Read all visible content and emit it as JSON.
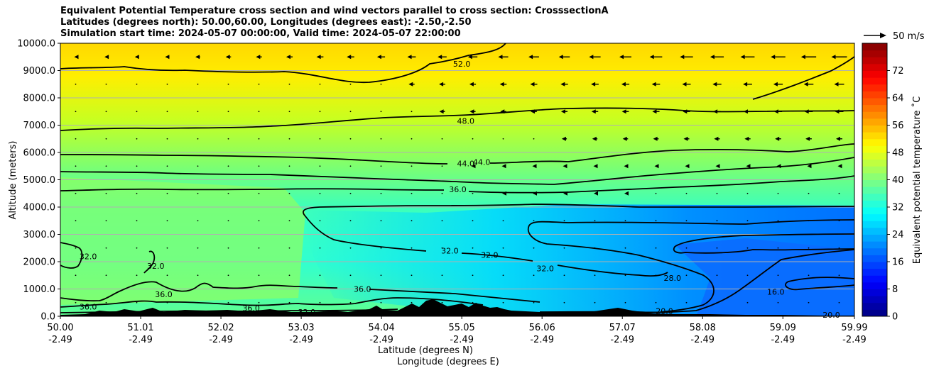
{
  "chart_data": {
    "type": "contour",
    "title": [
      "Equivalent Potential Temperature cross section and wind vectors parallel to cross section: CrosssectionA",
      "Latitudes (degrees north): 50.00,60.00, Longitudes (degrees east): -2.50,-2.50",
      "Simulation start time: 2024-05-07 00:00:00, Valid time: 2024-05-07 22:00:00"
    ],
    "ylabel": "Altitude (meters)",
    "xlabel_lat": "Latitude (degrees N)",
    "xlabel_lon": "Longitude (degrees E)",
    "ylim": [
      0,
      10000
    ],
    "y_ticks": [
      "0.0",
      "1000.0",
      "2000.0",
      "3000.0",
      "4000.0",
      "5000.0",
      "6000.0",
      "7000.0",
      "8000.0",
      "9000.0",
      "10000.0"
    ],
    "x_ticks": [
      {
        "lat": "50.00",
        "lon": "-2.49"
      },
      {
        "lat": "51.01",
        "lon": "-2.49"
      },
      {
        "lat": "52.02",
        "lon": "-2.49"
      },
      {
        "lat": "53.03",
        "lon": "-2.49"
      },
      {
        "lat": "54.04",
        "lon": "-2.49"
      },
      {
        "lat": "55.05",
        "lon": "-2.49"
      },
      {
        "lat": "56.06",
        "lon": "-2.49"
      },
      {
        "lat": "57.07",
        "lon": "-2.49"
      },
      {
        "lat": "58.08",
        "lon": "-2.49"
      },
      {
        "lat": "59.09",
        "lon": "-2.49"
      },
      {
        "lat": "59.99",
        "lon": "-2.49"
      }
    ],
    "xlim": [
      50.0,
      59.99
    ],
    "grid": "horizontal",
    "colorbar": {
      "label": "Equivalent potential temperature ˚C",
      "range": [
        0,
        80
      ],
      "ticks": [
        "0",
        "8",
        "16",
        "24",
        "32",
        "40",
        "48",
        "56",
        "64",
        "72"
      ],
      "colormap": "jet"
    },
    "quiver_key": {
      "label": "50 m/s",
      "value": 50
    },
    "contour_labels": [
      {
        "text": "52.0",
        "x": 55.05,
        "y": 9250
      },
      {
        "text": "48.0",
        "x": 55.1,
        "y": 7150
      },
      {
        "text": "44.0",
        "x": 55.1,
        "y": 5600
      },
      {
        "text": "44.0",
        "x": 55.3,
        "y": 5650
      },
      {
        "text": "36.0",
        "x": 55.0,
        "y": 4650
      },
      {
        "text": "32.0",
        "x": 54.9,
        "y": 2400
      },
      {
        "text": "32.0",
        "x": 55.4,
        "y": 2250
      },
      {
        "text": "32.0",
        "x": 56.1,
        "y": 1750
      },
      {
        "text": "28.0",
        "x": 57.7,
        "y": 1400
      },
      {
        "text": "16.0",
        "x": 59.0,
        "y": 900
      },
      {
        "text": "20.0",
        "x": 57.6,
        "y": 200
      },
      {
        "text": "20.0",
        "x": 59.7,
        "y": 50
      },
      {
        "text": "32.0",
        "x": 50.35,
        "y": 2200
      },
      {
        "text": "32.0",
        "x": 51.2,
        "y": 1850
      },
      {
        "text": "36.0",
        "x": 50.35,
        "y": 350
      },
      {
        "text": "36.0",
        "x": 51.3,
        "y": 800
      },
      {
        "text": "36.0",
        "x": 52.4,
        "y": 300
      },
      {
        "text": "32.0",
        "x": 53.1,
        "y": 150
      },
      {
        "text": "36.0",
        "x": 53.8,
        "y": 1000
      }
    ],
    "terrain_color": "#000000"
  }
}
